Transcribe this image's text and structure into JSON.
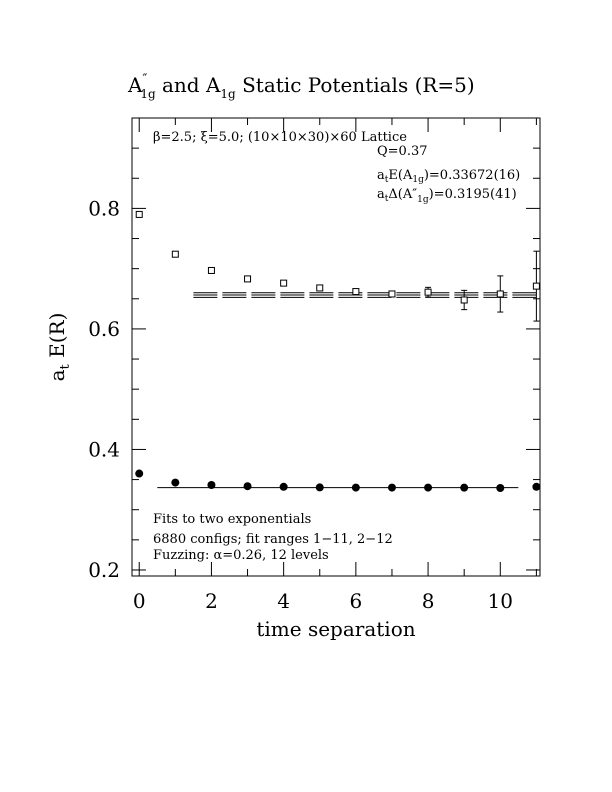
{
  "chart_data": {
    "type": "scatter",
    "title": "A″₁g and A₁g Static Potentials (R=5)",
    "title_parts": {
      "a1": "A",
      "prime": "″",
      "sub1": "1g",
      "mid": " and A",
      "sub2": "1g",
      "tail": " Static Potentials (R=5)"
    },
    "xlabel": "time separation",
    "ylabel_main": "a",
    "ylabel_sub": "t",
    "ylabel_tail": " E(R)",
    "xlim": [
      -0.2,
      11.1
    ],
    "ylim": [
      0.19,
      0.95
    ],
    "x_ticks": [
      0,
      2,
      4,
      6,
      8,
      10
    ],
    "y_ticks": [
      0.2,
      0.4,
      0.6,
      0.8
    ],
    "x_tick_labels": [
      "0",
      "2",
      "4",
      "6",
      "8",
      "10"
    ],
    "y_tick_labels": [
      "0.2",
      "0.4",
      "0.6",
      "0.8"
    ],
    "grid": false,
    "annotations": {
      "lattice": "β=2.5; ξ=5.0; (10×10×30)×60 Lattice",
      "q": "Q=0.37",
      "energy_a": "a",
      "energy_sub_t": "t",
      "energy_mid": "E(A",
      "energy_sub_g": "1g",
      "energy_val": ")=0.33672(16)",
      "delta_a": "a",
      "delta_sub_t": "t",
      "delta_mid": "Δ(A″",
      "delta_sub_g": "1g",
      "delta_val": ")=0.3195(41)",
      "fits": "Fits to two exponentials",
      "configs": "6880 configs; fit ranges 1−11, 2−12",
      "fuzzing": "Fuzzing: α=0.26, 12 levels"
    },
    "series": [
      {
        "marker": "open-square",
        "x": [
          0,
          1,
          2,
          3,
          4,
          5,
          6,
          7,
          8,
          9,
          10,
          11
        ],
        "y": [
          0.79,
          0.724,
          0.697,
          0.683,
          0.676,
          0.668,
          0.662,
          0.658,
          0.661,
          0.648,
          0.658,
          0.671
        ],
        "yerr": [
          0.002,
          0.002,
          0.002,
          0.002,
          0.002,
          0.003,
          0.003,
          0.004,
          0.008,
          0.016,
          0.03,
          0.058
        ]
      },
      {
        "marker": "filled-circle",
        "x": [
          0,
          1,
          2,
          3,
          4,
          5,
          6,
          7,
          8,
          9,
          10,
          11
        ],
        "y": [
          0.36,
          0.345,
          0.341,
          0.339,
          0.338,
          0.337,
          0.3367,
          0.3367,
          0.3367,
          0.3366,
          0.336,
          0.338
        ],
        "yerr": [
          0.0005,
          0.0005,
          0.0005,
          0.0005,
          0.0005,
          0.0005,
          0.0005,
          0.0005,
          0.001,
          0.001,
          0.001,
          0.002
        ]
      }
    ],
    "fits": [
      {
        "x_range": [
          0.5,
          10.5
        ],
        "y": [
          0.3367
        ],
        "style": "solid"
      },
      {
        "x_range": [
          1.5,
          11.0
        ],
        "y": [
          0.6562,
          0.6524,
          0.66
        ],
        "style": "long-dash"
      }
    ]
  }
}
